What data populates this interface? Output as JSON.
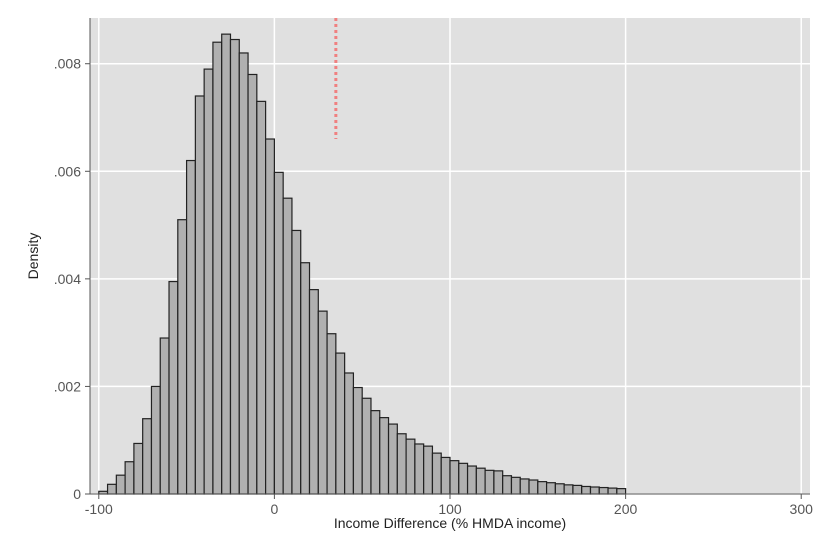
{
  "chart_data": {
    "type": "bar",
    "subtype": "histogram",
    "title": "",
    "xlabel": "Income Difference (% HMDA income)",
    "ylabel": "Density",
    "xlim": [
      -105,
      305
    ],
    "ylim": [
      0,
      0.00885
    ],
    "grid": true,
    "legend": "none",
    "x_ticks": [
      {
        "value": -100,
        "label": "-100"
      },
      {
        "value": 0,
        "label": "0"
      },
      {
        "value": 100,
        "label": "100"
      },
      {
        "value": 200,
        "label": "200"
      },
      {
        "value": 300,
        "label": "300"
      }
    ],
    "y_ticks": [
      {
        "value": 0,
        "label": "0"
      },
      {
        "value": 0.002,
        "label": ".002"
      },
      {
        "value": 0.004,
        "label": ".004"
      },
      {
        "value": 0.006,
        "label": ".006"
      },
      {
        "value": 0.008,
        "label": ".008"
      }
    ],
    "bin_start": -100,
    "bin_width": 5,
    "values": [
      5e-05,
      0.00018,
      0.00035,
      0.0006,
      0.00094,
      0.0014,
      0.002,
      0.0029,
      0.00395,
      0.0051,
      0.0062,
      0.0074,
      0.0079,
      0.0084,
      0.00855,
      0.00845,
      0.0082,
      0.0078,
      0.0073,
      0.0066,
      0.00598,
      0.0055,
      0.0049,
      0.0043,
      0.0038,
      0.0034,
      0.00298,
      0.00262,
      0.00225,
      0.00198,
      0.00178,
      0.00155,
      0.00142,
      0.0013,
      0.00112,
      0.00102,
      0.00093,
      0.00089,
      0.00076,
      0.00068,
      0.00062,
      0.00057,
      0.00052,
      0.00048,
      0.00044,
      0.00043,
      0.00034,
      0.00031,
      0.00028,
      0.00026,
      0.00023,
      0.00021,
      0.00019,
      0.00017,
      0.00016,
      0.00014,
      0.00013,
      0.00012,
      0.00011,
      0.0001
    ],
    "reference_line": {
      "x": 35,
      "y_from": 0.0066,
      "color": "#f08080",
      "style": "dotted"
    },
    "colors": {
      "panel": "#e0e0e0",
      "grid": "#ffffff",
      "bar_fill": "#b0b0b0",
      "bar_stroke": "#222222"
    }
  }
}
